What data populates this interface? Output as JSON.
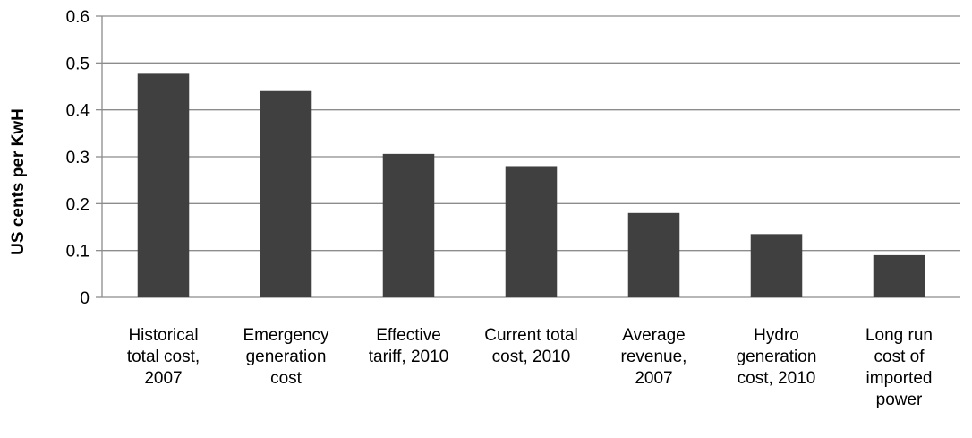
{
  "chart_data": {
    "type": "bar",
    "title": "",
    "xlabel": "",
    "ylabel": "US cents per KwH",
    "ylim": [
      0,
      0.6
    ],
    "yticks": [
      "0",
      "0.1",
      "0.2",
      "0.3",
      "0.4",
      "0.5",
      "0.6"
    ],
    "grid": true,
    "legend": "none",
    "bar_color": "#404040",
    "grid_color": "#8c8c8c",
    "categories": [
      [
        "Historical",
        "total cost,",
        "2007"
      ],
      [
        "Emergency",
        "generation",
        "cost"
      ],
      [
        "Effective",
        "tariff, 2010"
      ],
      [
        "Current total",
        "cost, 2010"
      ],
      [
        "Average",
        "revenue,",
        "2007"
      ],
      [
        "Hydro",
        "generation",
        "cost, 2010"
      ],
      [
        "Long run",
        "cost of",
        "imported",
        "power"
      ]
    ],
    "values": [
      0.477,
      0.44,
      0.306,
      0.28,
      0.18,
      0.135,
      0.09
    ]
  }
}
